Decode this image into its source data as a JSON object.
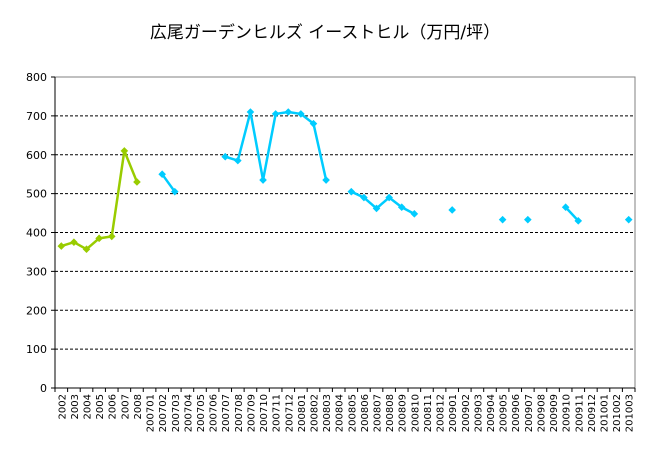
{
  "chart_data": {
    "type": "line",
    "title": "広尾ガーデンヒルズ イーストヒル（万円/坪）",
    "xlabel": "",
    "ylabel": "",
    "ylim": [
      0,
      800
    ],
    "yticks": [
      0,
      100,
      200,
      300,
      400,
      500,
      600,
      700,
      800
    ],
    "grid": true,
    "legend": "none",
    "categories": [
      "2002",
      "2003",
      "2004",
      "2005",
      "2006",
      "2007",
      "2008",
      "200701",
      "200702",
      "200703",
      "200704",
      "200705",
      "200706",
      "200707",
      "200708",
      "200709",
      "200710",
      "200711",
      "200712",
      "200801",
      "200802",
      "200803",
      "200804",
      "200805",
      "200806",
      "200807",
      "200808",
      "200809",
      "200810",
      "200811",
      "200812",
      "200901",
      "200902",
      "200903",
      "200904",
      "200905",
      "200906",
      "200907",
      "200908",
      "200909",
      "200910",
      "200911",
      "200912",
      "201001",
      "201002",
      "201003"
    ],
    "series": [
      {
        "color": "#99CC00",
        "values": [
          365,
          375,
          357,
          385,
          390,
          610,
          530,
          null,
          null,
          null,
          null,
          null,
          null,
          null,
          null,
          null,
          null,
          null,
          null,
          null,
          null,
          null,
          null,
          null,
          null,
          null,
          null,
          null,
          null,
          null,
          null,
          null,
          null,
          null,
          null,
          null,
          null,
          null,
          null,
          null,
          null,
          null,
          null,
          null,
          null,
          null
        ]
      },
      {
        "color": "#00CCFF",
        "values": [
          null,
          null,
          null,
          null,
          null,
          null,
          null,
          null,
          550,
          505,
          null,
          null,
          null,
          595,
          585,
          710,
          535,
          705,
          710,
          705,
          680,
          535,
          null,
          505,
          490,
          462,
          490,
          465,
          448,
          null,
          null,
          458,
          null,
          null,
          null,
          433,
          null,
          433,
          null,
          null,
          465,
          430,
          null,
          null,
          null,
          433
        ]
      }
    ]
  }
}
